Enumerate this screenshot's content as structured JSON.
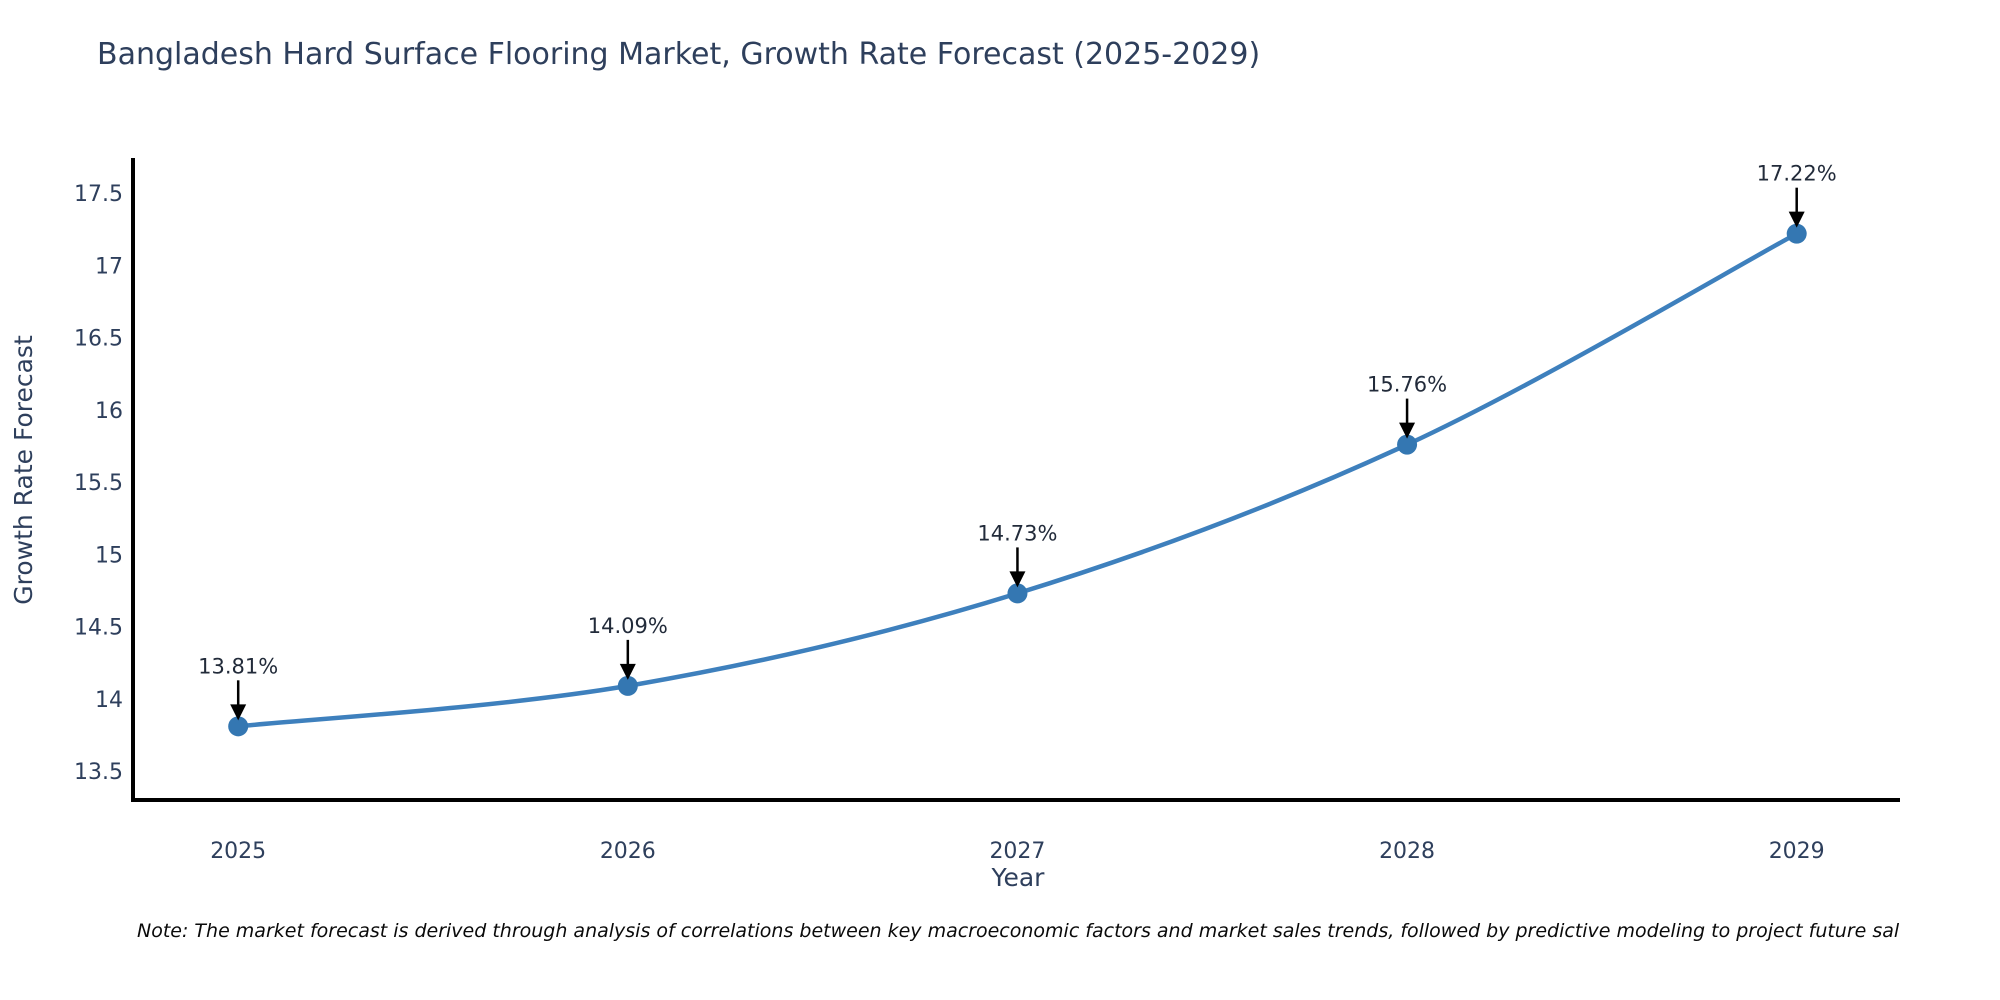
{
  "header": {
    "title": "Bangladesh Hard Surface Flooring Market, Growth Rate Forecast (2025-2029)"
  },
  "chart_data": {
    "type": "line",
    "title": "Bangladesh Hard Surface Flooring Market, Growth Rate Forecast (2025-2029)",
    "xlabel": "Year",
    "ylabel": "Growth Rate Forecast",
    "x": [
      2025,
      2026,
      2027,
      2028,
      2029
    ],
    "series": [
      {
        "name": "Growth Rate Forecast",
        "values": [
          13.81,
          14.09,
          14.73,
          15.76,
          17.22
        ]
      }
    ],
    "point_labels": [
      "13.81%",
      "14.09%",
      "14.73%",
      "15.76%",
      "17.22%"
    ],
    "xtick_labels": [
      "2025",
      "2026",
      "2027",
      "2028",
      "2029"
    ],
    "yticks": [
      13.5,
      14,
      14.5,
      15,
      15.5,
      16,
      16.5,
      17,
      17.5
    ],
    "ytick_labels": [
      "13.5",
      "14",
      "14.5",
      "15",
      "15.5",
      "16",
      "16.5",
      "17",
      "17.5"
    ],
    "ylim": [
      13.3,
      17.73
    ],
    "xlim": [
      2024.73,
      2029.26
    ],
    "grid": false,
    "legend_position": "none",
    "annotation_arrows": true,
    "colors": {
      "line": "#3e80bd",
      "marker": "#3477b2",
      "spine": "#000000",
      "tick_text": "#2e3f5c",
      "annotation_text": "#222b3a",
      "arrow": "#000000"
    }
  },
  "footer": {
    "note": "Note: The market forecast is derived through analysis of correlations between key macroeconomic factors and market sales trends, followed by predictive modeling to project future sal"
  }
}
